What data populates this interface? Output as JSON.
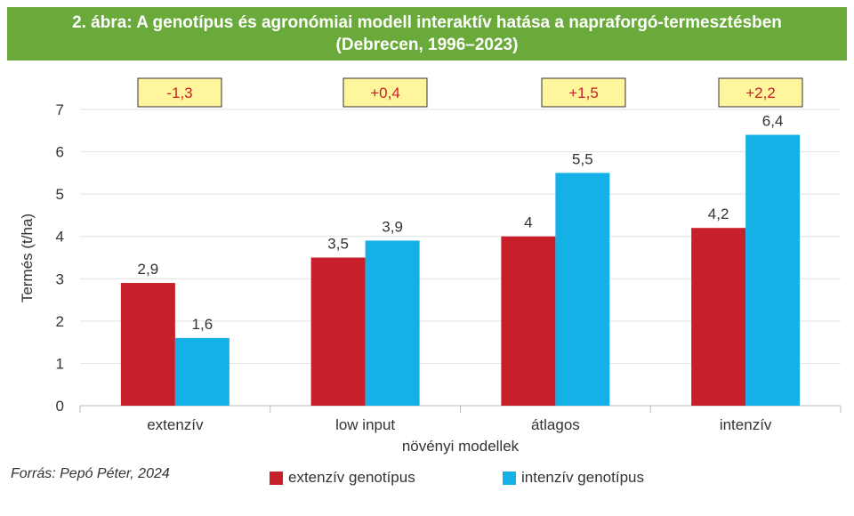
{
  "chart_data": {
    "type": "bar",
    "title": "2. ábra: A genotípus és agronómiai modell interaktív hatása a napraforgó-termesztésben",
    "subtitle": "(Debrecen, 1996–2023)",
    "xlabel": "növényi modellek",
    "ylabel": "Termés (t/ha)",
    "ylim": [
      0,
      7
    ],
    "yticks": [
      0,
      1,
      2,
      3,
      4,
      5,
      6,
      7
    ],
    "grid": true,
    "legend_position": "bottom",
    "categories": [
      "extenzív",
      "low input",
      "átlagos",
      "intenzív"
    ],
    "series": [
      {
        "name": "extenzív genotípus",
        "color": "#c8202a",
        "values": [
          2.9,
          3.5,
          4,
          4.2
        ],
        "labels": [
          "2,9",
          "3,5",
          "4",
          "4,2"
        ]
      },
      {
        "name": "intenzív genotípus",
        "color": "#14b0e6",
        "values": [
          1.6,
          3.9,
          5.5,
          6.4
        ],
        "labels": [
          "1,6",
          "3,9",
          "5,5",
          "6,4"
        ]
      }
    ],
    "annotations": [
      "-1,3",
      "+0,4",
      "+1,5",
      "+2,2"
    ]
  },
  "source": "Forrás: Pepó Péter, 2024"
}
